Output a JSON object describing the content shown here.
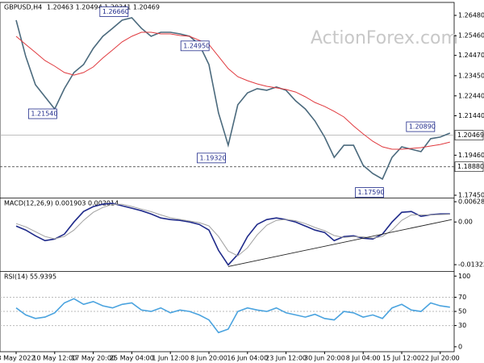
{
  "chart_data": [
    {
      "type": "line",
      "title": "GBPUSD,H4",
      "subtitle": "1.20463 1.20494 1.20341 1.20469",
      "watermark": "ActionForex.com",
      "ylim": [
        1.1733,
        1.2713
      ],
      "yticks": [
        {
          "value": 1.2648,
          "label": "1.26480"
        },
        {
          "value": 1.2546,
          "label": "1.25460"
        },
        {
          "value": 1.2447,
          "label": "1.24470"
        },
        {
          "value": 1.2345,
          "label": "1.23450"
        },
        {
          "value": 1.2244,
          "label": "1.22440"
        },
        {
          "value": 1.2144,
          "label": "1.21440"
        },
        {
          "value": 1.1946,
          "label": "1.19460"
        },
        {
          "value": 1.1745,
          "label": "1.17450"
        }
      ],
      "last_price": {
        "value": 1.20469,
        "label": "1.20469"
      },
      "support": {
        "value": 1.1888,
        "label": "1.18880"
      },
      "series": [
        {
          "color": "#4b6a7d",
          "values": [
            1.2624,
            1.2442,
            1.23,
            1.2239,
            1.2178,
            1.228,
            1.2361,
            1.2401,
            1.2482,
            1.2543,
            1.2583,
            1.2624,
            1.2636,
            1.2583,
            1.2543,
            1.2563,
            1.2563,
            1.2555,
            1.2543,
            1.2502,
            1.2401,
            1.2158,
            1.1996,
            1.2199,
            1.2259,
            1.228,
            1.2272,
            1.2288,
            1.2272,
            1.2219,
            1.2178,
            1.2118,
            1.2037,
            1.1935,
            1.1996,
            1.1996,
            1.1895,
            1.1854,
            1.1826,
            1.1935,
            1.1988,
            1.1976,
            1.1964,
            1.2029,
            1.2037,
            1.2057
          ]
        },
        {
          "color": "#e0393e",
          "values": [
            1.2543,
            1.2502,
            1.2462,
            1.2421,
            1.2393,
            1.2361,
            1.2348,
            1.2361,
            1.2389,
            1.2434,
            1.2474,
            1.2515,
            1.2543,
            1.2563,
            1.2563,
            1.2555,
            1.2555,
            1.2547,
            1.2543,
            1.2523,
            1.2502,
            1.2442,
            1.2381,
            1.234,
            1.232,
            1.2304,
            1.2292,
            1.2284,
            1.2276,
            1.2263,
            1.2239,
            1.2211,
            1.2191,
            1.2166,
            1.2138,
            1.2093,
            1.2053,
            1.2016,
            1.1988,
            1.1976,
            1.1976,
            1.198,
            1.1984,
            1.1992,
            1.2,
            1.2012
          ]
        }
      ],
      "annotations": [
        {
          "label": "1.26660",
          "value": 1.2666,
          "x": 11.7
        },
        {
          "label": "1.21540",
          "value": 1.2154,
          "x": 4.3
        },
        {
          "label": "1.24950",
          "value": 1.2495,
          "x": 20.1
        },
        {
          "label": "1.19320",
          "value": 1.1932,
          "x": 21.8
        },
        {
          "label": "1.20890",
          "value": 1.2089,
          "x": 43.5
        },
        {
          "label": "1.17590",
          "value": 1.1759,
          "x": 38.2
        }
      ]
    },
    {
      "type": "line",
      "title": "MACD(12,26,9) 0.001903 0.002014",
      "ylim": [
        -0.0152,
        0.0073
      ],
      "yticks": [
        0.006285,
        {
          "value": 0,
          "label": "0.00"
        },
        -0.013223
      ],
      "series": [
        {
          "color": "#1f2a8a",
          "values": [
            -0.00126,
            -0.00251,
            -0.00427,
            -0.00577,
            -0.00527,
            -0.00377,
            0,
            0.00326,
            0.00477,
            0.00552,
            0.00577,
            0.00502,
            0.00427,
            0.00351,
            0.00251,
            0.00126,
            0.00075,
            0.0005,
            0,
            -0.00075,
            -0.00251,
            -0.00879,
            -0.0133,
            -0.01004,
            -0.00452,
            -0.00075,
            0.00075,
            0.00126,
            0.00075,
            0,
            -0.00126,
            -0.00251,
            -0.00326,
            -0.00577,
            -0.00452,
            -0.00427,
            -0.00502,
            -0.00527,
            -0.00377,
            0,
            0.00301,
            0.00326,
            0.00176,
            0.00226,
            0.00251,
            0.00251
          ]
        },
        {
          "color": "#a0a0a0",
          "values": [
            -0.0005,
            -0.0015,
            -0.003,
            -0.0045,
            -0.0052,
            -0.0045,
            -0.0025,
            0.0005,
            0.003,
            0.0045,
            0.0055,
            0.0055,
            0.0048,
            0.004,
            0.0032,
            0.0022,
            0.0013,
            0.0008,
            0.0003,
            -0.0002,
            -0.0012,
            -0.0045,
            -0.009,
            -0.0105,
            -0.008,
            -0.004,
            -0.001,
            0.0005,
            0.0008,
            0.0004,
            -0.0005,
            -0.0017,
            -0.0027,
            -0.0042,
            -0.0048,
            -0.0045,
            -0.0046,
            -0.005,
            -0.0045,
            -0.0025,
            0.0005,
            0.0022,
            0.0022,
            0.0022,
            0.0023,
            0.0024
          ]
        }
      ],
      "trendline": {
        "x": [
          22,
          45.2
        ],
        "values": [
          -0.0138,
          0.00075
        ]
      }
    },
    {
      "type": "line",
      "title": "RSI(14) 55.9395",
      "ylim": [
        -7,
        106
      ],
      "yticks": [
        100,
        70,
        50,
        30,
        0
      ],
      "levels": [
        70,
        50,
        30
      ],
      "categories": [
        "3 May 2022",
        null,
        null,
        null,
        "10 May 12:00",
        null,
        null,
        null,
        "17 May 20:00",
        null,
        null,
        null,
        "25 May 04:00",
        null,
        null,
        null,
        "1 Jun 12:00",
        null,
        null,
        null,
        "8 Jun 20:00",
        null,
        null,
        null,
        "16 Jun 04:00",
        null,
        null,
        null,
        "23 Jun 12:00",
        null,
        null,
        null,
        "30 Jun 20:00",
        null,
        null,
        null,
        "8 Jul 04:00",
        null,
        null,
        null,
        "15 Jul 12:00",
        null,
        null,
        null,
        "22 Jul 20:00",
        null
      ],
      "series": [
        {
          "color": "#4aa3df",
          "values": [
            55,
            45,
            40,
            42,
            48,
            62,
            68,
            60,
            64,
            58,
            55,
            60,
            62,
            52,
            50,
            55,
            48,
            52,
            50,
            45,
            38,
            20,
            25,
            50,
            55,
            52,
            50,
            55,
            48,
            45,
            42,
            46,
            40,
            38,
            50,
            48,
            42,
            45,
            40,
            55,
            60,
            52,
            50,
            62,
            58,
            56
          ]
        }
      ]
    }
  ]
}
